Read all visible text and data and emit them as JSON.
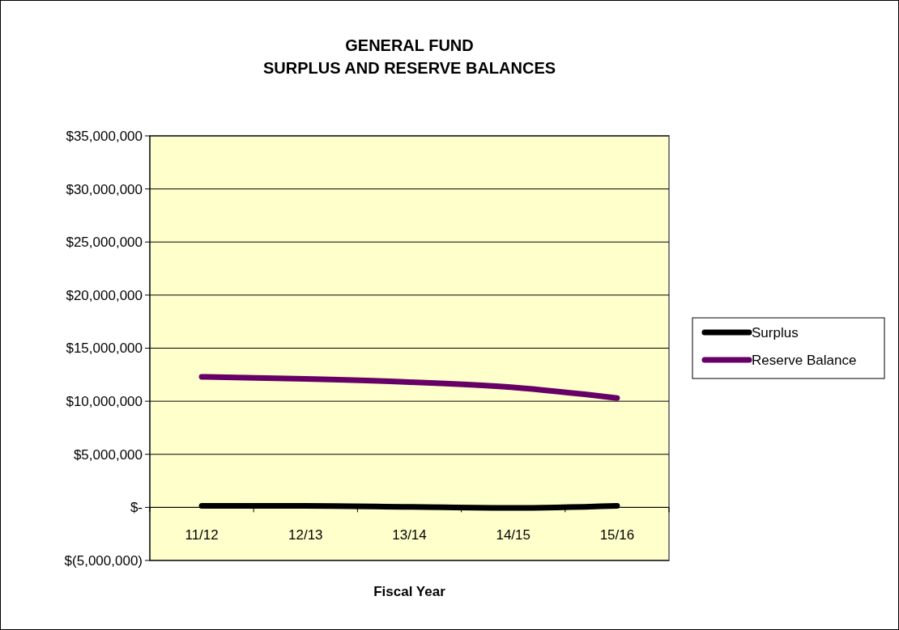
{
  "chart_data": {
    "type": "line",
    "title": "GENERAL FUND\nSURPLUS AND RESERVE BALANCES",
    "xlabel": "Fiscal Year",
    "categories": [
      "11/12",
      "12/13",
      "13/14",
      "14/15",
      "15/16"
    ],
    "series": [
      {
        "name": "Surplus",
        "color": "#000000",
        "values": [
          150000,
          150000,
          50000,
          -50000,
          150000
        ]
      },
      {
        "name": "Reserve Balance",
        "color": "#660066",
        "values": [
          12300000,
          12100000,
          11800000,
          11300000,
          10300000
        ]
      }
    ],
    "ylim": [
      -5000000,
      35000000
    ],
    "yticks": [
      {
        "value": -5000000,
        "label": "$(5,000,000)"
      },
      {
        "value": 0,
        "label": "$-"
      },
      {
        "value": 5000000,
        "label": "$5,000,000"
      },
      {
        "value": 10000000,
        "label": "$10,000,000"
      },
      {
        "value": 15000000,
        "label": "$15,000,000"
      },
      {
        "value": 20000000,
        "label": "$20,000,000"
      },
      {
        "value": 25000000,
        "label": "$25,000,000"
      },
      {
        "value": 30000000,
        "label": "$30,000,000"
      },
      {
        "value": 35000000,
        "label": "$35,000,000"
      }
    ],
    "grid": "y",
    "legend": "right",
    "marker": "none",
    "line_style": "solid"
  }
}
